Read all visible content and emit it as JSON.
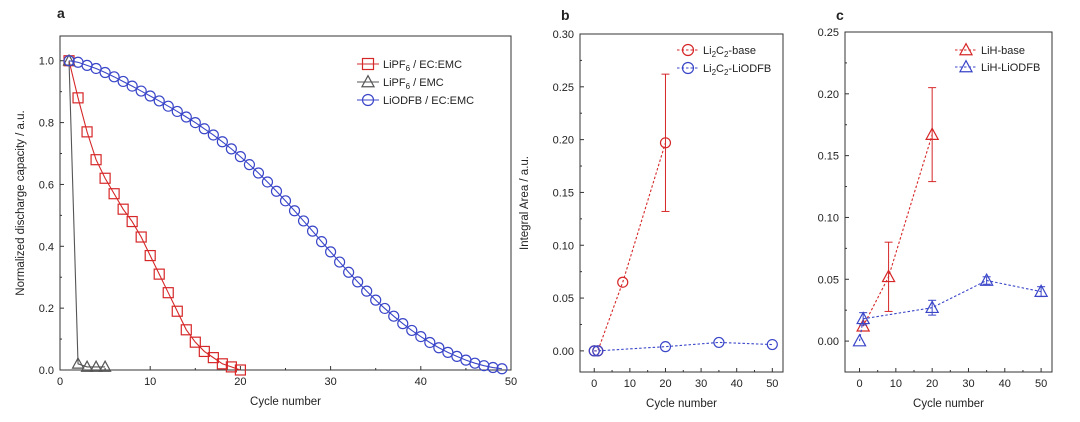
{
  "chart_data": [
    {
      "panel": "a",
      "type": "line",
      "xlabel": "Cycle number",
      "ylabel": "Normalized discharge capacity / a.u.",
      "xlim": [
        0,
        50
      ],
      "ylim": [
        0,
        1.08
      ],
      "xticks": [
        "0",
        "10",
        "20",
        "30",
        "40",
        "50"
      ],
      "yticks": [
        "0.0",
        "0.2",
        "0.4",
        "0.6",
        "0.8",
        "1.0"
      ],
      "xtick_values": [
        0,
        10,
        20,
        30,
        40,
        50
      ],
      "ytick_values": [
        0,
        0.2,
        0.4,
        0.6,
        0.8,
        1.0
      ],
      "legend_position": "top-right",
      "series": [
        {
          "name": "LiPF6 / EC:EMC",
          "legend_main": "LiPF",
          "legend_sub": "6",
          "legend_rest": " / EC:EMC",
          "color": "#d62728",
          "marker": "square",
          "x": [
            1,
            2,
            3,
            4,
            5,
            6,
            7,
            8,
            9,
            10,
            11,
            12,
            13,
            14,
            15,
            16,
            17,
            18,
            19,
            20
          ],
          "y": [
            1.0,
            0.88,
            0.77,
            0.68,
            0.62,
            0.57,
            0.52,
            0.48,
            0.43,
            0.37,
            0.31,
            0.25,
            0.19,
            0.13,
            0.09,
            0.06,
            0.04,
            0.02,
            0.01,
            0.0
          ]
        },
        {
          "name": "LiPF6 / EMC",
          "legend_main": "LiPF",
          "legend_sub": "6",
          "legend_rest": " / EMC",
          "color": "#555555",
          "marker": "triangle",
          "x": [
            1,
            2,
            3,
            4,
            5
          ],
          "y": [
            1.0,
            0.02,
            0.01,
            0.01,
            0.01
          ]
        },
        {
          "name": "LiODFB / EC:EMC",
          "legend_main": "LiODFB / EC:EMC",
          "legend_sub": "",
          "legend_rest": "",
          "color": "#3a46c8",
          "marker": "circle",
          "x": [
            1,
            2,
            3,
            4,
            5,
            6,
            7,
            8,
            9,
            10,
            11,
            12,
            13,
            14,
            15,
            16,
            17,
            18,
            19,
            20,
            21,
            22,
            23,
            24,
            25,
            26,
            27,
            28,
            29,
            30,
            31,
            32,
            33,
            34,
            35,
            36,
            37,
            38,
            39,
            40,
            41,
            42,
            43,
            44,
            45,
            46,
            47,
            48,
            49
          ],
          "y": [
            1.0,
            0.995,
            0.985,
            0.975,
            0.962,
            0.948,
            0.933,
            0.918,
            0.902,
            0.886,
            0.87,
            0.853,
            0.836,
            0.818,
            0.8,
            0.78,
            0.76,
            0.738,
            0.715,
            0.69,
            0.664,
            0.637,
            0.608,
            0.578,
            0.547,
            0.515,
            0.482,
            0.449,
            0.415,
            0.382,
            0.349,
            0.316,
            0.285,
            0.255,
            0.226,
            0.199,
            0.174,
            0.15,
            0.128,
            0.108,
            0.089,
            0.072,
            0.057,
            0.044,
            0.032,
            0.022,
            0.014,
            0.008,
            0.004
          ]
        }
      ]
    },
    {
      "panel": "b",
      "type": "scatter",
      "xlabel": "Cycle number",
      "ylabel": "Integral Area / a.u.",
      "xlim": [
        -4,
        53
      ],
      "ylim": [
        -0.02,
        0.3
      ],
      "xticks": [
        "0",
        "10",
        "20",
        "30",
        "40",
        "50"
      ],
      "yticks": [
        "0.00",
        "0.05",
        "0.10",
        "0.15",
        "0.20",
        "0.25",
        "0.30"
      ],
      "xtick_values": [
        0,
        10,
        20,
        30,
        40,
        50
      ],
      "ytick_values": [
        0,
        0.05,
        0.1,
        0.15,
        0.2,
        0.25,
        0.3
      ],
      "legend_position": "top-right",
      "series": [
        {
          "name": "Li2C2-base",
          "legend_parts": [
            [
              "Li",
              ""
            ],
            [
              "2",
              "sub"
            ],
            [
              "C",
              ""
            ],
            [
              "2",
              "sub"
            ],
            [
              "-base",
              ""
            ]
          ],
          "color": "#d62728",
          "marker": "circle",
          "x": [
            0,
            1,
            8,
            20
          ],
          "y": [
            0.0,
            0.0,
            0.065,
            0.197
          ],
          "err": [
            0,
            0,
            0,
            0.065
          ]
        },
        {
          "name": "Li2C2-LiODFB",
          "legend_parts": [
            [
              "Li",
              ""
            ],
            [
              "2",
              "sub"
            ],
            [
              "C",
              ""
            ],
            [
              "2",
              "sub"
            ],
            [
              "-LiODFB",
              ""
            ]
          ],
          "color": "#3a46c8",
          "marker": "circle",
          "x": [
            0,
            1,
            20,
            35,
            50
          ],
          "y": [
            0.0,
            0.0,
            0.004,
            0.008,
            0.006
          ],
          "err": [
            0,
            0,
            0,
            0,
            0
          ]
        }
      ]
    },
    {
      "panel": "c",
      "type": "scatter",
      "xlabel": "Cycle number",
      "ylabel": "",
      "xlim": [
        -4,
        53
      ],
      "ylim": [
        -0.025,
        0.25
      ],
      "xticks": [
        "0",
        "10",
        "20",
        "30",
        "40",
        "50"
      ],
      "yticks": [
        "0.00",
        "0.05",
        "0.10",
        "0.15",
        "0.20",
        "0.25"
      ],
      "xtick_values": [
        0,
        10,
        20,
        30,
        40,
        50
      ],
      "ytick_values": [
        0,
        0.05,
        0.1,
        0.15,
        0.2,
        0.25
      ],
      "legend_position": "top-right",
      "series": [
        {
          "name": "LiH-base",
          "legend_parts": [
            [
              "LiH-base",
              ""
            ]
          ],
          "color": "#d62728",
          "marker": "triangle",
          "x": [
            1,
            8,
            20
          ],
          "y": [
            0.012,
            0.052,
            0.167
          ],
          "err": [
            0,
            0.028,
            0.038
          ]
        },
        {
          "name": "LiH-LiODFB",
          "legend_parts": [
            [
              "LiH-LiODFB",
              ""
            ]
          ],
          "color": "#3a46c8",
          "marker": "triangle",
          "x": [
            0,
            1,
            20,
            35,
            50
          ],
          "y": [
            0.0,
            0.018,
            0.027,
            0.049,
            0.04
          ],
          "err": [
            0,
            0.005,
            0.006,
            0.003,
            0.004
          ]
        }
      ]
    }
  ]
}
